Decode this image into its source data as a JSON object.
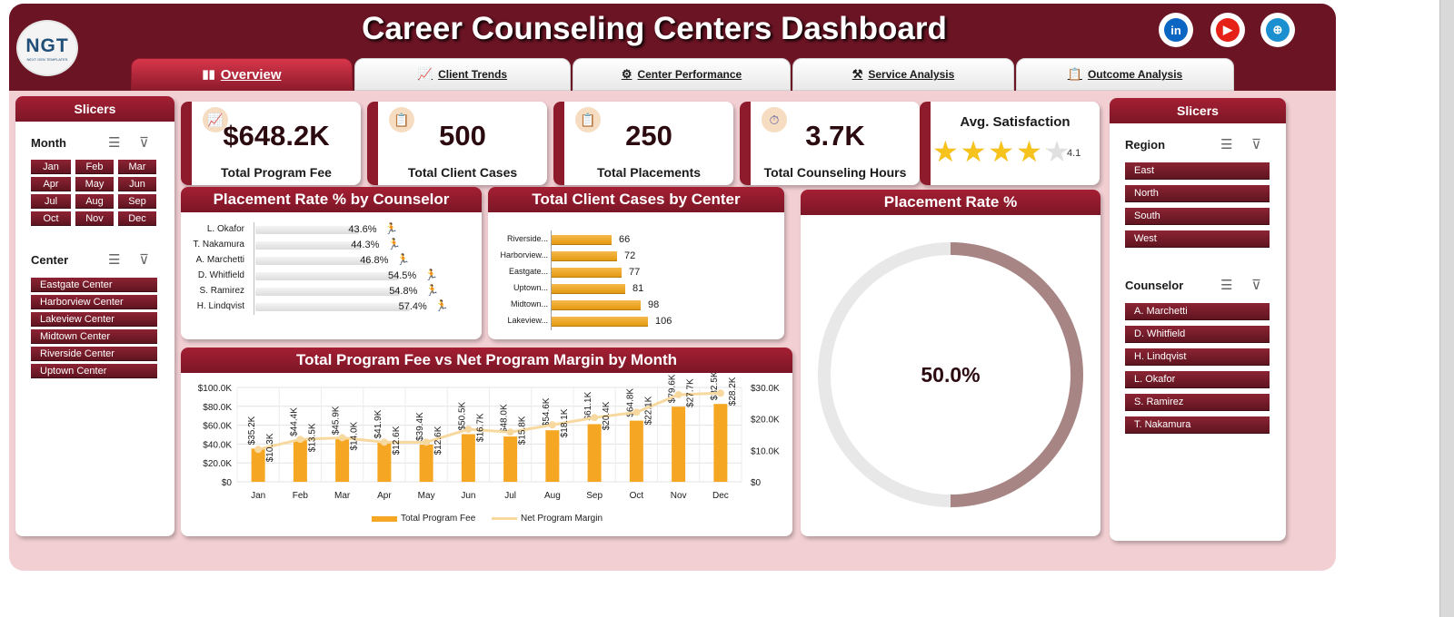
{
  "header": {
    "title": "Career Counseling Centers Dashboard",
    "logo_text": "NGT",
    "logo_subtext": "NEXT GEN TEMPLATES",
    "social": [
      {
        "name": "linkedin-icon",
        "glyph": "in",
        "color": "#0a66c2"
      },
      {
        "name": "youtube-icon",
        "glyph": "▶",
        "color": "#e62117"
      },
      {
        "name": "globe-icon",
        "glyph": "⊕",
        "color": "#1b8fd0"
      }
    ]
  },
  "tabs": [
    {
      "label": "Overview",
      "icon": "▮▮",
      "icon_name": "bar-chart-icon"
    },
    {
      "label": "Client Trends",
      "icon": "📈",
      "icon_name": "trend-chart-icon"
    },
    {
      "label": "Center Performance",
      "icon": "⚙",
      "icon_name": "gear-icon"
    },
    {
      "label": "Service Analysis",
      "icon": "⚒",
      "icon_name": "tools-icon"
    },
    {
      "label": "Outcome Analysis",
      "icon": "📋",
      "icon_name": "clipboard-icon"
    }
  ],
  "left_slicers": {
    "title": "Slicers",
    "month_label": "Month",
    "months": [
      "Jan",
      "Feb",
      "Mar",
      "Apr",
      "May",
      "Jun",
      "Jul",
      "Aug",
      "Sep",
      "Oct",
      "Nov",
      "Dec"
    ],
    "center_label": "Center",
    "centers": [
      "Eastgate Center",
      "Harborview Center",
      "Lakeview Center",
      "Midtown Center",
      "Riverside Center",
      "Uptown Center"
    ]
  },
  "right_slicers": {
    "title": "Slicers",
    "region_label": "Region",
    "regions": [
      "East",
      "North",
      "South",
      "West"
    ],
    "counselor_label": "Counselor",
    "counselors": [
      "A. Marchetti",
      "D. Whitfield",
      "H. Lindqvist",
      "L. Okafor",
      "S. Ramirez",
      "T. Nakamura"
    ]
  },
  "kpis": [
    {
      "value": "$648.2K",
      "label": "Total Program Fee",
      "icon": "📈",
      "icon_name": "trend-chart-icon"
    },
    {
      "value": "500",
      "label": "Total Client Cases",
      "icon": "📋",
      "icon_name": "clipboard-icon"
    },
    {
      "value": "250",
      "label": "Total Placements",
      "icon": "📋",
      "icon_name": "clipboard-icon"
    },
    {
      "value": "3.7K",
      "label": "Total Counseling Hours",
      "icon": "⏱",
      "icon_name": "stopwatch-icon"
    }
  ],
  "satisfaction": {
    "label": "Avg. Satisfaction",
    "value": "4.1",
    "rating": 4.1,
    "max": 5,
    "star_color": "#f6c21c"
  },
  "chart_data": [
    {
      "type": "bar",
      "title": "Placement Rate % by Counselor",
      "categories": [
        "L. Okafor",
        "T. Nakamura",
        "A. Marchetti",
        "D. Whitfield",
        "S. Ramirez",
        "H. Lindqvist"
      ],
      "values": [
        43.6,
        44.3,
        46.8,
        54.5,
        54.8,
        57.4
      ],
      "labels": [
        "43.6%",
        "44.3%",
        "46.8%",
        "54.5%",
        "54.8%",
        "57.4%"
      ]
    },
    {
      "type": "bar",
      "title": "Total Client Cases by Center",
      "categories": [
        "Riverside...",
        "Harborview...",
        "Eastgate...",
        "Uptown...",
        "Midtown...",
        "Lakeview..."
      ],
      "values": [
        66,
        72,
        77,
        81,
        98,
        106
      ],
      "xlim": [
        0,
        120
      ],
      "color": "#f0a82a"
    },
    {
      "type": "pie",
      "title": "Placement Rate %",
      "values": [
        50.0,
        50.0
      ],
      "center_label": "50.0%",
      "colors": [
        "#a88585",
        "#e8e8e8"
      ]
    },
    {
      "type": "bar",
      "title": "Total Program Fee vs Net Program Margin by Month",
      "categories": [
        "Jan",
        "Feb",
        "Mar",
        "Apr",
        "May",
        "Jun",
        "Jul",
        "Aug",
        "Sep",
        "Oct",
        "Nov",
        "Dec"
      ],
      "series": [
        {
          "name": "Total Program Fee",
          "type": "bar",
          "axis": "left",
          "color": "#f5a623",
          "values": [
            35200,
            44400,
            45900,
            41900,
            39400,
            50500,
            48000,
            54600,
            61100,
            64800,
            79600,
            82500
          ],
          "labels": [
            "$35.2K",
            "$44.4K",
            "$45.9K",
            "$41.9K",
            "$39.4K",
            "$50.5K",
            "$48.0K",
            "$54.6K",
            "$61.1K",
            "$64.8K",
            "$79.6K",
            "$82.5K"
          ]
        },
        {
          "name": "Net Program Margin",
          "type": "line",
          "axis": "right",
          "color": "#f7d9a0",
          "values": [
            10300,
            13500,
            14000,
            12600,
            12600,
            16700,
            15800,
            18100,
            20400,
            22100,
            27700,
            28200
          ],
          "labels": [
            "$10.3K",
            "$13.5K",
            "$14.0K",
            "$12.6K",
            "$12.6K",
            "$16.7K",
            "$15.8K",
            "$18.1K",
            "$20.4K",
            "$22.1K",
            "$27.7K",
            "$28.2K"
          ]
        }
      ],
      "ylim_left": [
        0,
        100000
      ],
      "yticks_left": [
        "$0",
        "$20.0K",
        "$40.0K",
        "$60.0K",
        "$80.0K",
        "$100.0K"
      ],
      "ylim_right": [
        0,
        30000
      ],
      "yticks_right": [
        "$0",
        "$10.0K",
        "$20.0K",
        "$30.0K"
      ],
      "grid": true,
      "legend": "bottom"
    }
  ]
}
